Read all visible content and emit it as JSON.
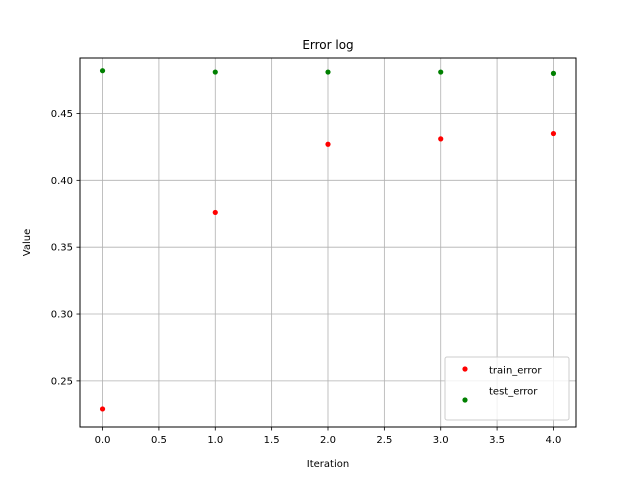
{
  "chart_data": {
    "type": "scatter",
    "title": "Error log",
    "xlabel": "Iteration",
    "ylabel": "Value",
    "xlim": [
      -0.2,
      4.2
    ],
    "ylim": [
      0.2155,
      0.4915
    ],
    "xticks": [
      0.0,
      0.5,
      1.0,
      1.5,
      2.0,
      2.5,
      3.0,
      3.5,
      4.0
    ],
    "xtick_labels": [
      "0.0",
      "0.5",
      "1.0",
      "1.5",
      "2.0",
      "2.5",
      "3.0",
      "3.5",
      "4.0"
    ],
    "yticks": [
      0.25,
      0.3,
      0.35,
      0.4,
      0.45
    ],
    "ytick_labels": [
      "0.25",
      "0.30",
      "0.35",
      "0.40",
      "0.45"
    ],
    "grid": true,
    "legend_position": "lower-right",
    "series": [
      {
        "name": "train_error",
        "color": "#ff0000",
        "x": [
          0,
          1,
          2,
          3,
          4
        ],
        "y": [
          0.229,
          0.376,
          0.427,
          0.431,
          0.435
        ]
      },
      {
        "name": "test_error",
        "color": "#008000",
        "x": [
          0,
          1,
          2,
          3,
          4
        ],
        "y": [
          0.482,
          0.481,
          0.481,
          0.481,
          0.48
        ]
      }
    ]
  }
}
